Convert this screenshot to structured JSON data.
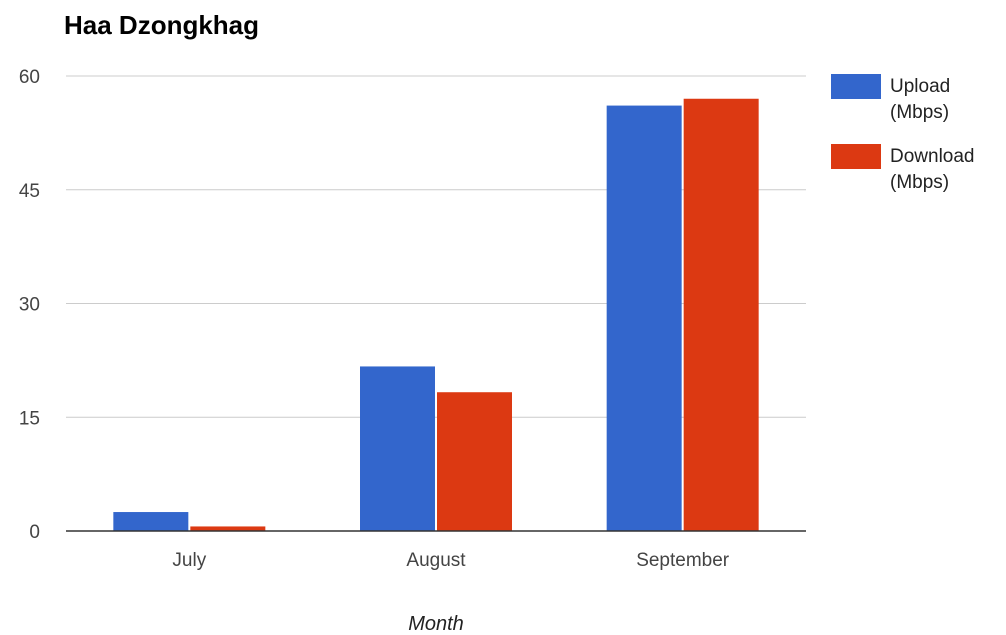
{
  "chart_data": {
    "type": "bar",
    "title": "Haa Dzongkhag",
    "xlabel": "Month",
    "ylabel": "",
    "categories": [
      "July",
      "August",
      "September"
    ],
    "series": [
      {
        "name": "Upload (Mbps)",
        "name_lines": [
          "Upload",
          "(Mbps)"
        ],
        "color": "#3366cc",
        "values": [
          2.5,
          21.7,
          56.1
        ]
      },
      {
        "name": "Download (Mbps)",
        "name_lines": [
          "Download",
          "(Mbps)"
        ],
        "color": "#dc3912",
        "values": [
          0.6,
          18.3,
          57.0
        ]
      }
    ],
    "ylim": [
      0,
      60
    ],
    "yticks": [
      0,
      15,
      30,
      45,
      60
    ],
    "ytick_labels": [
      "0",
      "15",
      "30",
      "45",
      "60"
    ],
    "grid": true,
    "legend_position": "right"
  }
}
